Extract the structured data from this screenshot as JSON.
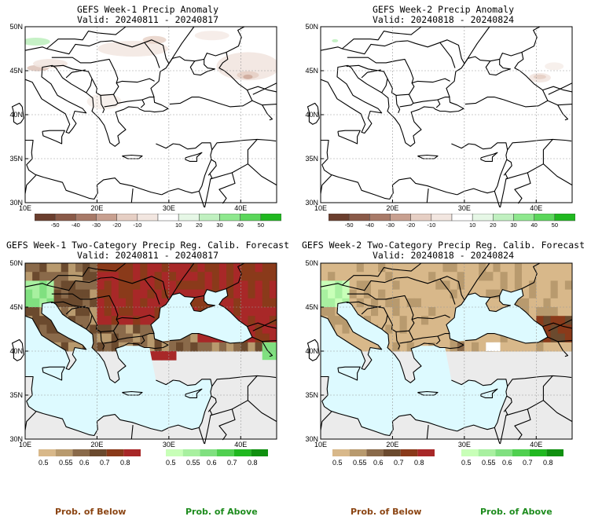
{
  "panels": [
    {
      "line1": "GEFS Week-1 Precip Anomaly",
      "line2": "Valid: 20240811 - 20240817"
    },
    {
      "line1": "GEFS Week-2 Precip Anomaly",
      "line2": "Valid: 20240818 - 20240824"
    },
    {
      "line1": "GEFS Week-1 Two-Category Precip Reg. Calib. Forecast",
      "line2": "Valid: 20240811 - 20240817"
    },
    {
      "line1": "GEFS Week-2 Two-Category Precip Reg. Calib. Forecast",
      "line2": "Valid: 20240818 - 20240824"
    }
  ],
  "axes": {
    "lat_labels": [
      "50N",
      "45N",
      "40N",
      "35N",
      "30N"
    ],
    "lon_labels": [
      "10E",
      "20E",
      "30E",
      "40E"
    ]
  },
  "anomaly_scale": {
    "labels": [
      "-50",
      "-40",
      "-30",
      "-20",
      "-10",
      "10",
      "20",
      "30",
      "40",
      "50"
    ],
    "colors": [
      "#6b3e2e",
      "#8a5a48",
      "#a87a68",
      "#c8a090",
      "#e6cfc4",
      "#f2e6e0",
      "#ffffff",
      "#e6f7e6",
      "#c0f0c0",
      "#8ee88e",
      "#5bd75b",
      "#1fb81f"
    ]
  },
  "prob_scale_below": {
    "labels": [
      "0.5",
      "0.55",
      "0.6",
      "0.7",
      "0.8"
    ],
    "colors": [
      "#d8b88a",
      "#b89a6e",
      "#8a6a4a",
      "#6b4a2e",
      "#8a3a1a",
      "#a82828"
    ]
  },
  "prob_scale_above": {
    "labels": [
      "0.5",
      "0.55",
      "0.6",
      "0.7",
      "0.8"
    ],
    "colors": [
      "#c8ffb8",
      "#a8f0a0",
      "#80e080",
      "#50d050",
      "#20b820",
      "#109010"
    ]
  },
  "footer": {
    "below_left": "Prob. of Below",
    "above_left": "Prob. of Above",
    "below_right": "Prob. of Below",
    "above_right": "Prob. of Above"
  },
  "colors": {
    "sea": "#ddfaff",
    "no_data": "#ebebeb",
    "below_text": "#8b4513",
    "above_text": "#1e8c1e"
  }
}
